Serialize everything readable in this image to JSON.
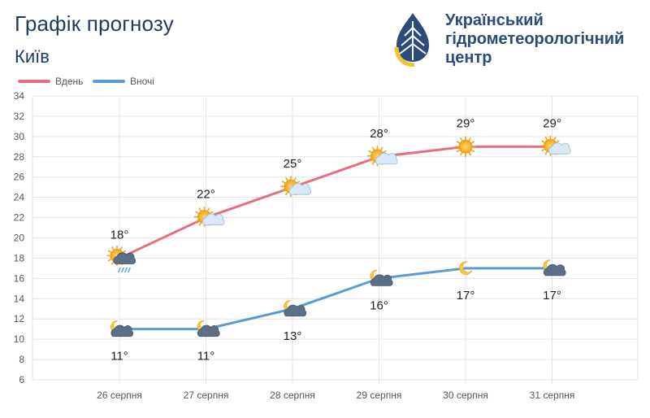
{
  "header": {
    "title": "Графік прогнозу",
    "city": "Київ"
  },
  "logo": {
    "line1": "Український",
    "line2": "гідрометеорологічний",
    "line3": "центр"
  },
  "colors": {
    "day": "#e4707f",
    "night": "#5b9bd5",
    "grid": "#e3e3e3"
  },
  "chart_data": {
    "type": "line",
    "categories": [
      "26 серпня",
      "27 серпня",
      "28 серпня",
      "29 серпня",
      "30 серпня",
      "31 серпня"
    ],
    "series": [
      {
        "name": "Вдень",
        "values": [
          18,
          22,
          25,
          28,
          29,
          29
        ],
        "labels": [
          "18°",
          "22°",
          "25°",
          "28°",
          "29°",
          "29°"
        ],
        "icons": [
          "sun-cloud-rain-icon",
          "sun-cloud-icon",
          "sun-cloud-icon",
          "sun-cloud-icon",
          "sun-icon",
          "sun-cloud-icon"
        ]
      },
      {
        "name": "Вночі",
        "values": [
          11,
          11,
          13,
          16,
          17,
          17
        ],
        "labels": [
          "11°",
          "11°",
          "13°",
          "16°",
          "17°",
          "17°"
        ],
        "icons": [
          "moon-dark-cloud-icon",
          "moon-dark-cloud-icon",
          "moon-dark-cloud-icon",
          "moon-dark-cloud-icon",
          "moon-icon",
          "moon-dark-cloud-icon"
        ]
      }
    ],
    "ylim": [
      6,
      34
    ],
    "yticks": [
      "6",
      "8",
      "10",
      "12",
      "14",
      "16",
      "18",
      "20",
      "22",
      "24",
      "26",
      "28",
      "30",
      "32",
      "34"
    ],
    "grid": true,
    "legend": "top-left"
  }
}
